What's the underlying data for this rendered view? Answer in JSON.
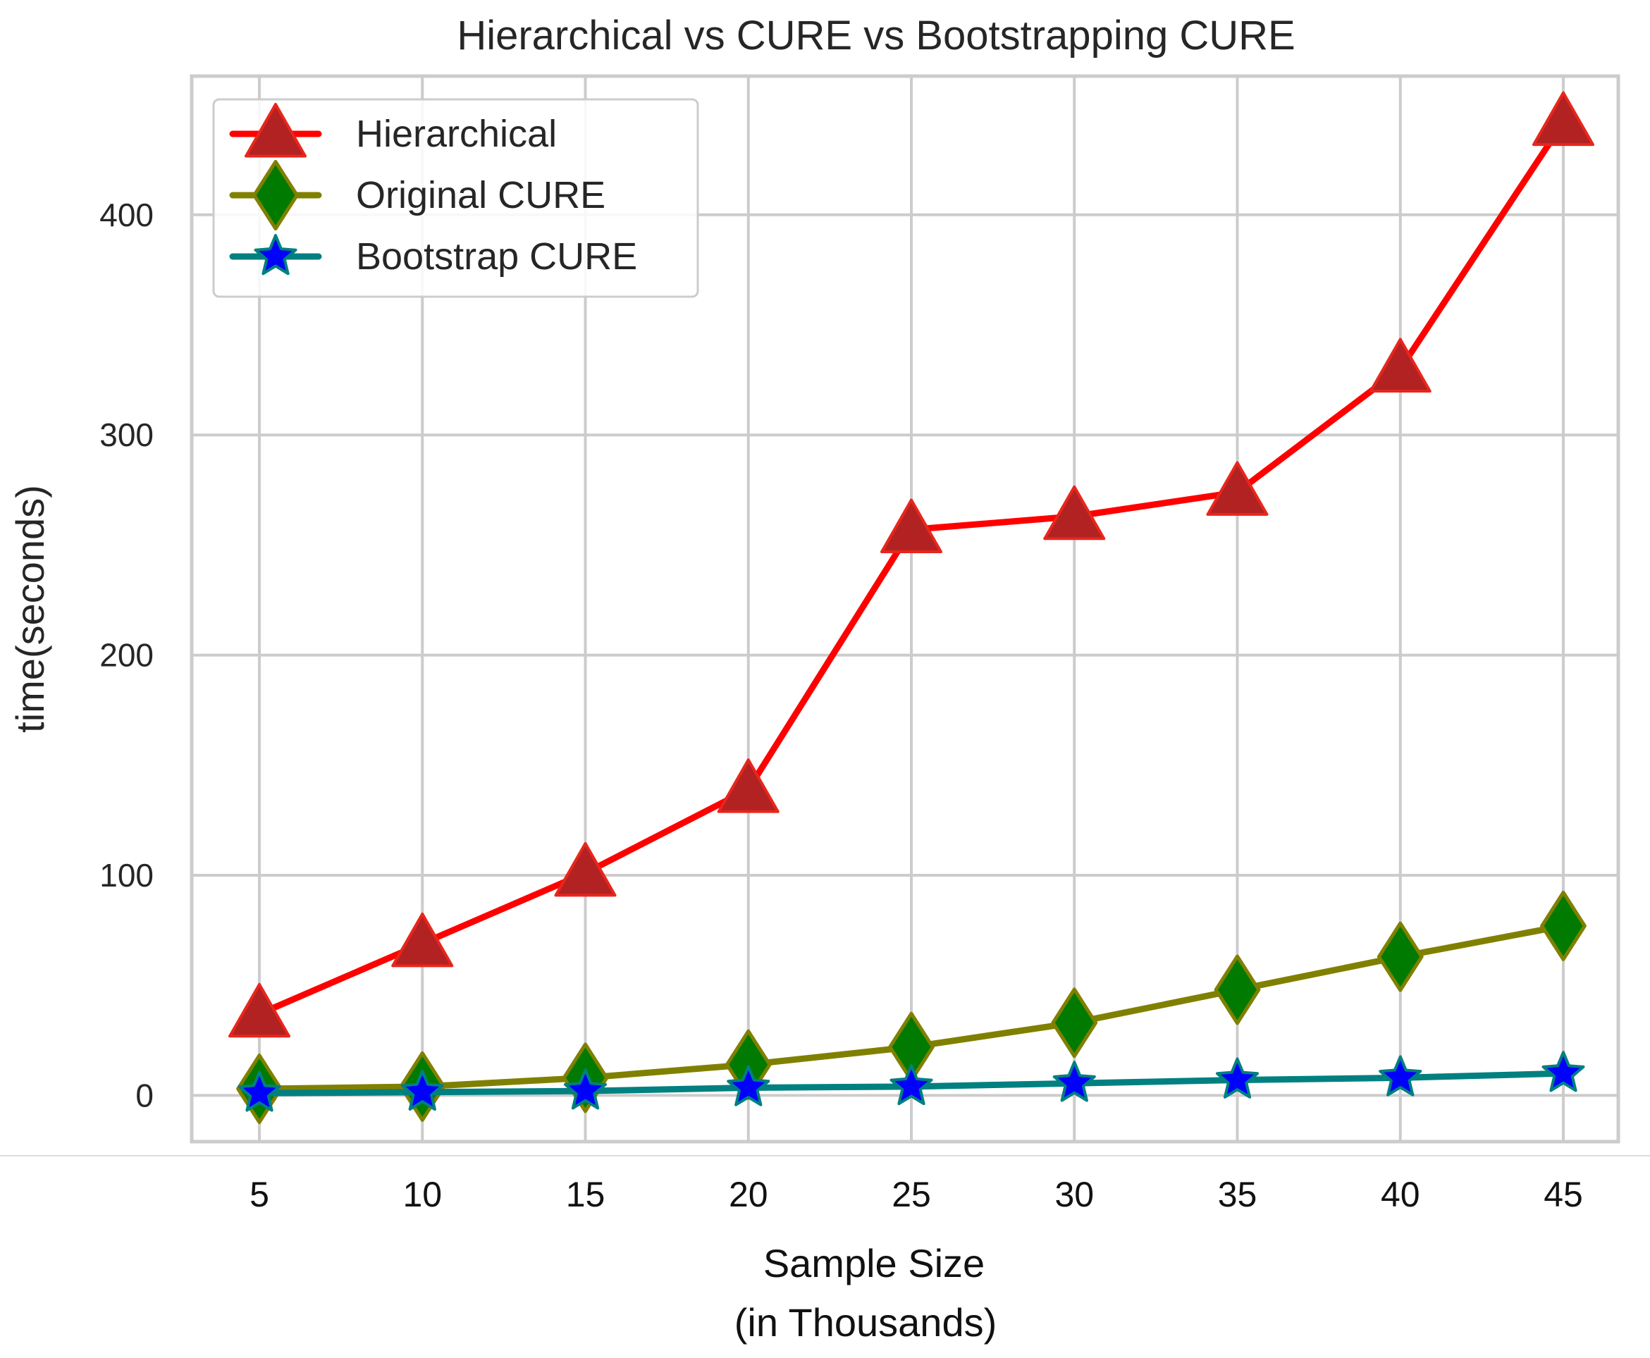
{
  "chart_data": {
    "type": "line",
    "title": "Hierarchical vs CURE vs Bootstrapping CURE",
    "xlabel_lines": [
      "Sample Size",
      "(in Thousands)"
    ],
    "ylabel": "time(seconds)",
    "x": [
      5,
      10,
      15,
      20,
      25,
      30,
      35,
      40,
      45
    ],
    "x_tick_labels": [
      "5",
      "10",
      "15",
      "20",
      "25",
      "30",
      "35",
      "40",
      "45"
    ],
    "yticks": [
      0,
      100,
      200,
      300,
      400
    ],
    "y_tick_labels": [
      "0",
      "100",
      "200",
      "300",
      "400"
    ],
    "ylim": [
      -21,
      463
    ],
    "grid": true,
    "legend_position": "top-left",
    "series": [
      {
        "name": "Hierarchical",
        "values": [
          37,
          69,
          101,
          139,
          257,
          263,
          274,
          330,
          442
        ],
        "line_color": "#ff0000",
        "marker": "triangle",
        "marker_fill": "#b22222",
        "marker_edge": "#e8261c"
      },
      {
        "name": "Original CURE",
        "values": [
          3,
          4,
          8,
          14,
          22,
          33,
          48,
          63,
          77
        ],
        "line_color": "#808000",
        "marker": "diamond",
        "marker_fill": "#007a00",
        "marker_edge": "#808000"
      },
      {
        "name": "Bootstrap CURE",
        "values": [
          1,
          1.5,
          2,
          3.5,
          4,
          5.5,
          7,
          8,
          10
        ],
        "line_color": "#008080",
        "marker": "star",
        "marker_fill": "#0000ff",
        "marker_edge": "#008080"
      }
    ]
  },
  "colors": {
    "grid": "#cccccc",
    "frame": "#cccccc",
    "text": "#262626"
  }
}
